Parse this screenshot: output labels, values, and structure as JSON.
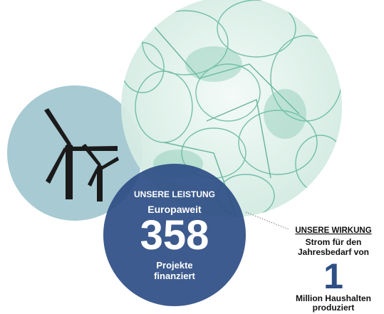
{
  "impact_graphic": {
    "performance": {
      "heading": "UNSERE LEISTUNG",
      "intro": "Europaweit",
      "value": 358,
      "caption_lines": [
        "Projekte",
        "finanziert"
      ]
    },
    "effect": {
      "heading": "UNSERE WIRKUNG",
      "intro_lines": [
        "Strom für den",
        "Jahresbedarf von"
      ],
      "value": 1,
      "caption_lines": [
        "Million Haushalten",
        "produziert"
      ]
    }
  }
}
